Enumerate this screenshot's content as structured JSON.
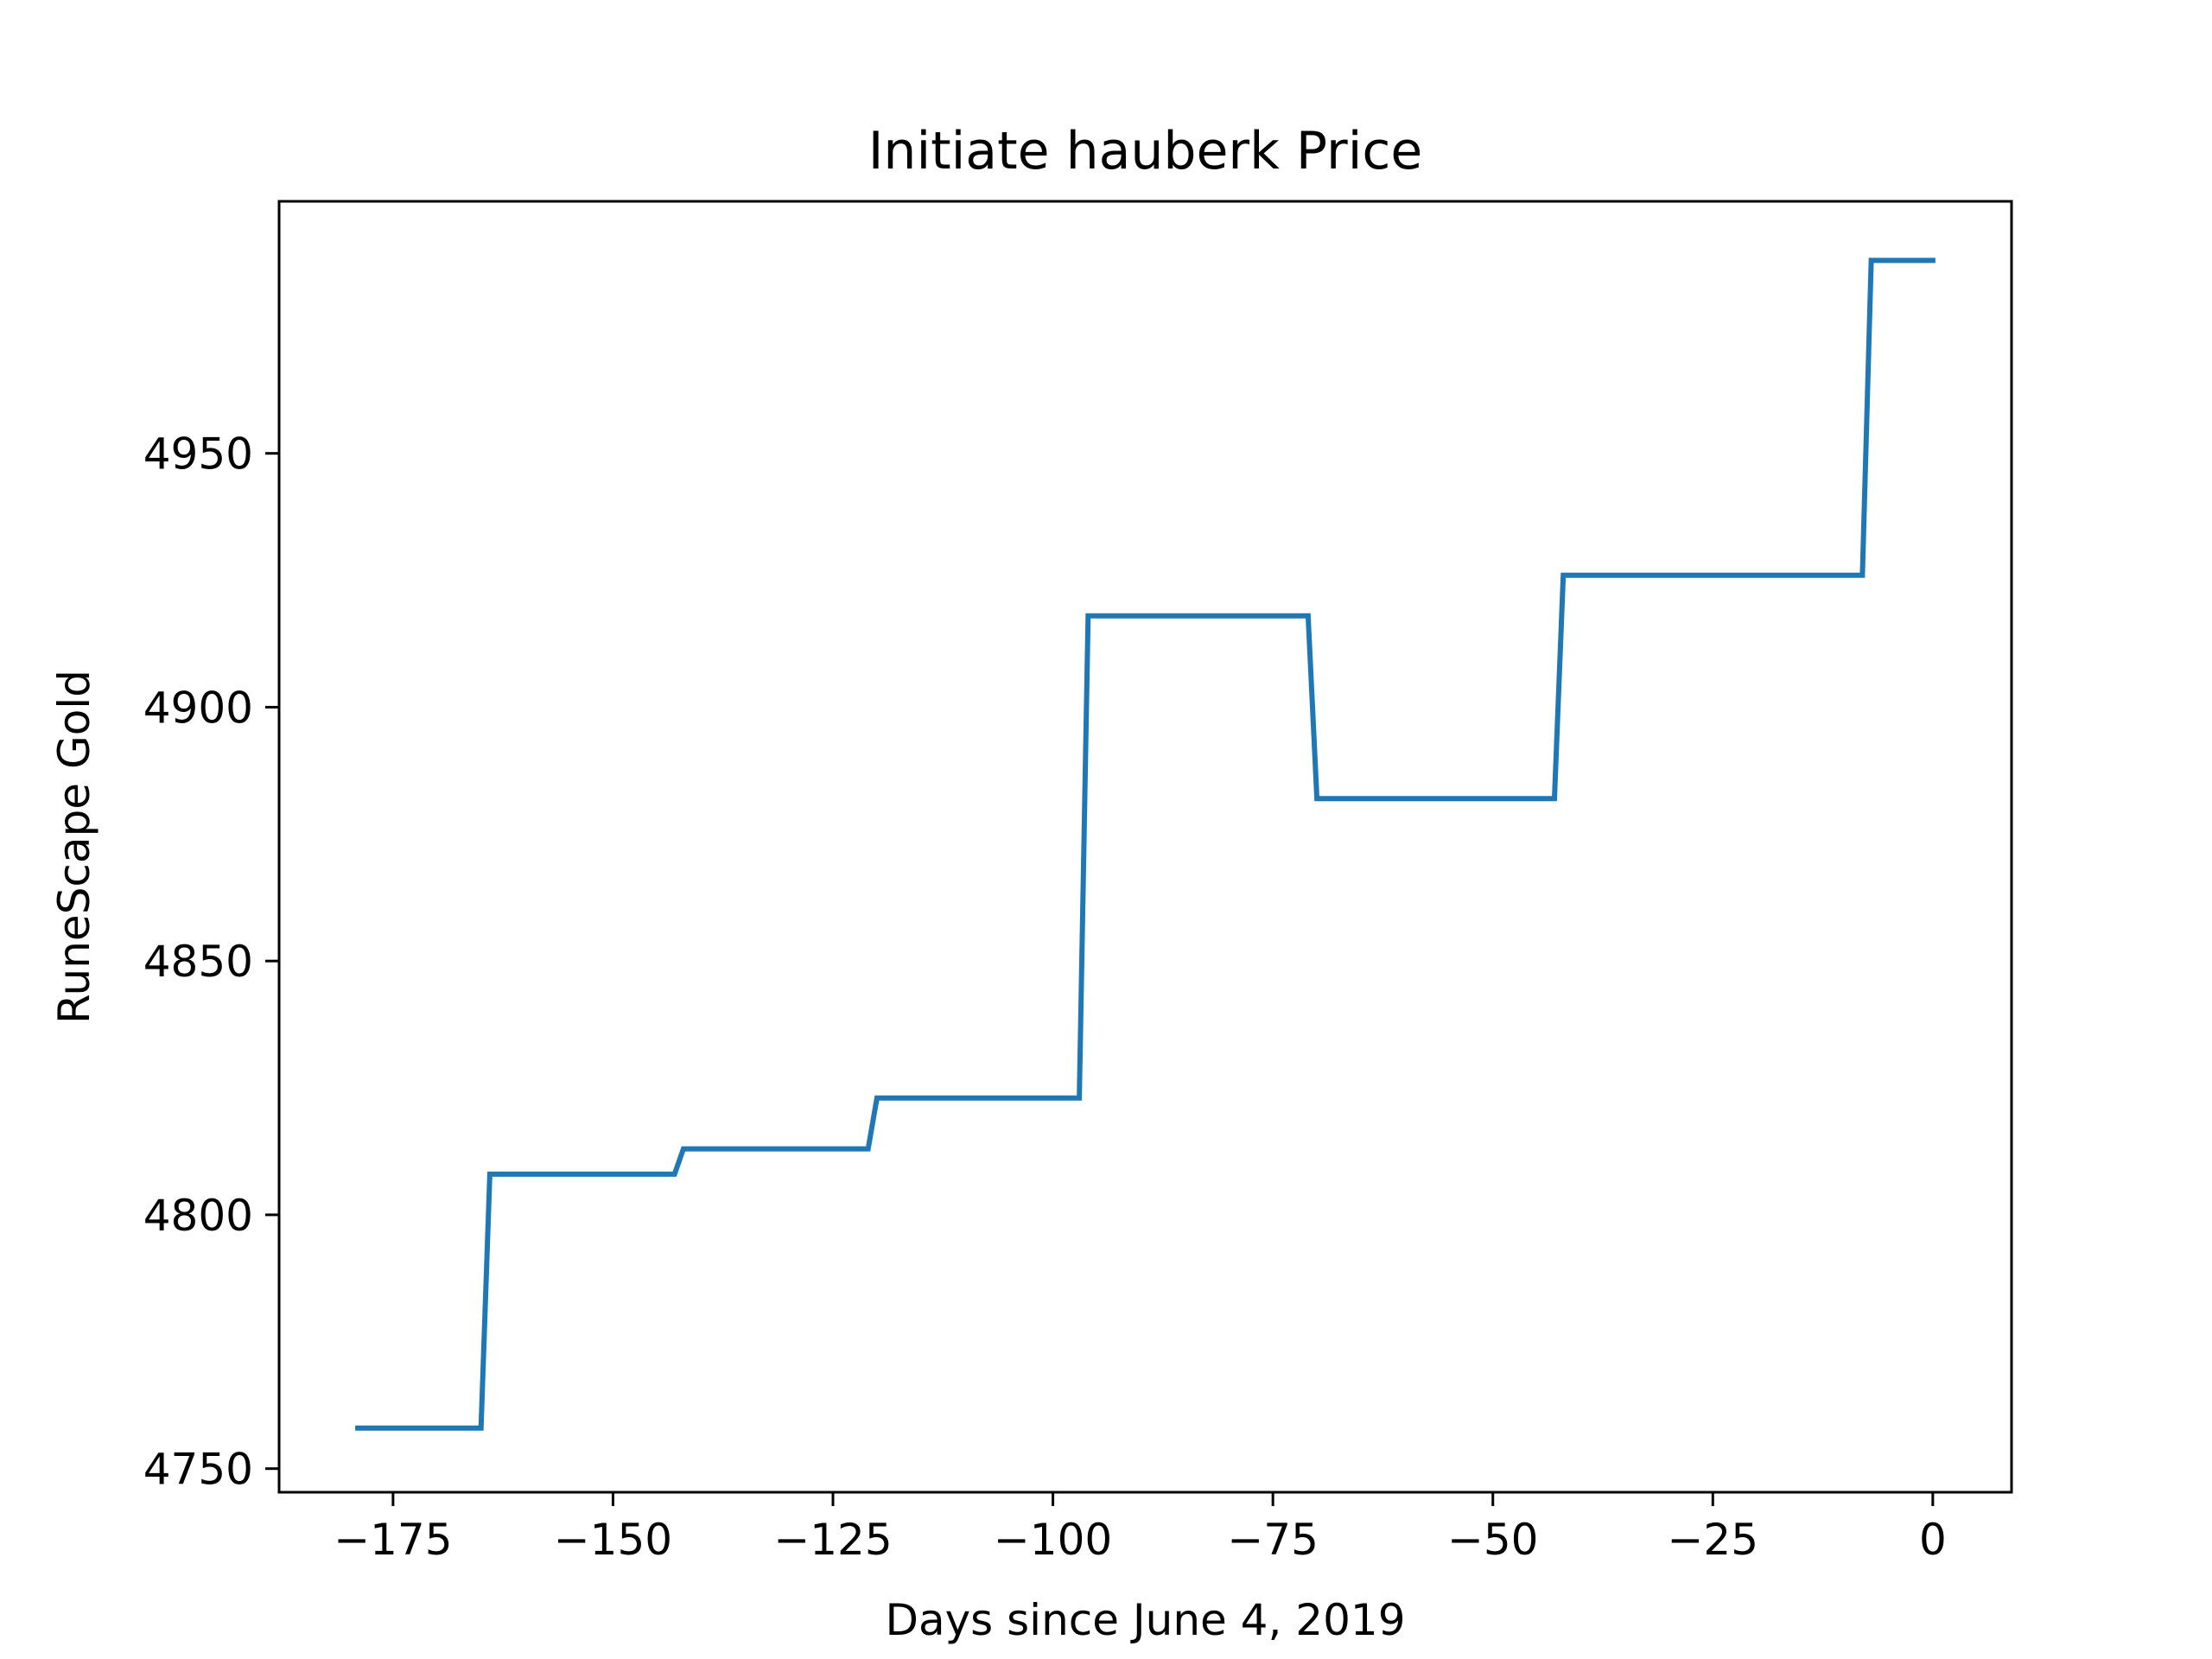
{
  "chart_data": {
    "type": "line",
    "title": "Initiate hauberk Price",
    "xlabel": "Days since June 4, 2019",
    "ylabel": "RuneScape Gold",
    "xlim": [
      -187.95,
      8.95
    ],
    "ylim": [
      4745.35,
      4999.65
    ],
    "xticks": [
      -175,
      -150,
      -125,
      -100,
      -75,
      -50,
      -25,
      0
    ],
    "xtick_labels": [
      "−175",
      "−150",
      "−125",
      "−100",
      "−75",
      "−50",
      "−25",
      "0"
    ],
    "yticks": [
      4750,
      4800,
      4850,
      4900,
      4950
    ],
    "ytick_labels": [
      "4750",
      "4800",
      "4850",
      "4900",
      "4950"
    ],
    "grid": false,
    "line_color": "#1f77b4",
    "series": [
      {
        "x": [
          -179,
          -165,
          -164,
          -143,
          -142,
          -121,
          -120,
          -97,
          -96,
          -71,
          -70,
          -43,
          -42,
          -8,
          -7,
          0
        ],
        "y": [
          4758,
          4758,
          4808,
          4808,
          4813,
          4813,
          4823,
          4823,
          4918,
          4918,
          4882,
          4882,
          4926,
          4926,
          4988,
          4988
        ]
      }
    ]
  }
}
